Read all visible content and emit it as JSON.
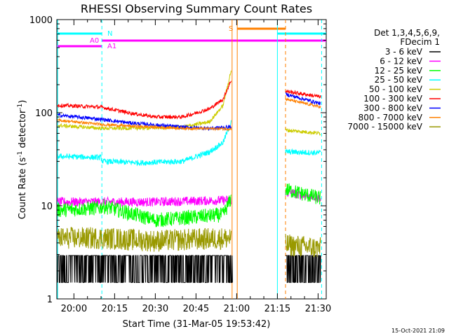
{
  "chart_data": {
    "type": "line",
    "title": "RHESSI Observing Summary Count Rates",
    "xlabel": "Start Time (31-Mar-05 19:53:42)",
    "ylabel_main": "Count Rate (s",
    "ylabel_sup1": "-1",
    "ylabel_mid": " detector",
    "ylabel_sup2": "-1",
    "ylabel_end": ")",
    "yscale": "log",
    "ylim": [
      1,
      1000
    ],
    "xlim_minutes": [
      -6.3,
      93
    ],
    "x_tick_labels": [
      "20:00",
      "20:15",
      "20:30",
      "20:45",
      "21:00",
      "21:15",
      "21:30"
    ],
    "x_tick_minutes": [
      0,
      15,
      30,
      45,
      60,
      75,
      90
    ],
    "y_tick_labels": [
      "1",
      "10",
      "100",
      "1000"
    ],
    "y_tick_values": [
      1,
      10,
      100,
      1000
    ],
    "legend_header": [
      "Det 1,3,4,5,6,9,",
      "FDecim 1"
    ],
    "series": [
      {
        "name": "3 - 6 keV",
        "color": "#000000"
      },
      {
        "name": "6 - 12 keV",
        "color": "#ff00ff"
      },
      {
        "name": "12 - 25 keV",
        "color": "#00ff00"
      },
      {
        "name": "25 - 50 keV",
        "color": "#00ffff"
      },
      {
        "name": "50 - 100 keV",
        "color": "#cccc00"
      },
      {
        "name": "100 - 300 keV",
        "color": "#ff0000"
      },
      {
        "name": "300 - 800 keV",
        "color": "#0000ff"
      },
      {
        "name": "800 - 7000 keV",
        "color": "#ff8000"
      },
      {
        "name": "7000 - 15000 keV",
        "color": "#999900"
      }
    ],
    "series_points": [
      {
        "key": "3-6",
        "x": [
          -6,
          10,
          10.5,
          58,
          58.5
        ],
        "y": [
          1.5,
          1.5,
          1.5,
          1.5,
          1.5
        ],
        "x2": [
          78,
          91
        ],
        "y2": [
          1.5,
          1.5
        ]
      },
      {
        "key": "6-12",
        "x": [
          -6,
          10,
          30,
          58
        ],
        "y": [
          11,
          11,
          11,
          11.5
        ],
        "x2": [
          78,
          91
        ],
        "y2": [
          14,
          12
        ]
      },
      {
        "key": "12-25",
        "x": [
          -6,
          10,
          10.5,
          30,
          55,
          58
        ],
        "y": [
          9,
          9.5,
          10,
          7,
          8,
          12
        ],
        "x2": [
          78,
          91
        ],
        "y2": [
          15,
          12
        ]
      },
      {
        "key": "25-50",
        "x": [
          -6,
          10,
          10.5,
          25,
          40,
          50,
          55,
          58
        ],
        "y": [
          34,
          33,
          30,
          29,
          30,
          38,
          48,
          80
        ],
        "x2": [
          78,
          91
        ],
        "y2": [
          38,
          37
        ]
      },
      {
        "key": "50-100",
        "x": [
          -6,
          10,
          20,
          40,
          50,
          55,
          58
        ],
        "y": [
          73,
          68,
          68,
          70,
          80,
          120,
          290
        ],
        "x2": [
          78,
          91
        ],
        "y2": [
          65,
          60
        ]
      },
      {
        "key": "100-300",
        "x": [
          -6,
          10,
          20,
          30,
          40,
          50,
          55,
          58
        ],
        "y": [
          120,
          115,
          100,
          90,
          90,
          110,
          140,
          225
        ],
        "x2": [
          78,
          91
        ],
        "y2": [
          170,
          148
        ]
      },
      {
        "key": "300-800",
        "x": [
          -6,
          10,
          20,
          40,
          50,
          58
        ],
        "y": [
          94,
          85,
          78,
          70,
          68,
          70
        ],
        "x2": [
          78,
          91
        ],
        "y2": [
          158,
          125
        ]
      },
      {
        "key": "800-7000",
        "x": [
          -6,
          10,
          20,
          40,
          58
        ],
        "y": [
          83,
          75,
          72,
          68,
          67
        ],
        "x2": [
          78,
          91
        ],
        "y2": [
          140,
          115
        ]
      },
      {
        "key": "7000-15000",
        "x": [
          -6,
          10,
          10.5,
          30,
          58
        ],
        "y": [
          4.5,
          4.5,
          4.5,
          4.2,
          4.5
        ],
        "x2": [
          78,
          91
        ],
        "y2": [
          3.8,
          3.5
        ]
      }
    ],
    "annotations": {
      "N": "N",
      "A0": "A0",
      "A1": "A1",
      "S": "S"
    },
    "timestamp": "15-Oct-2021 21:09"
  }
}
